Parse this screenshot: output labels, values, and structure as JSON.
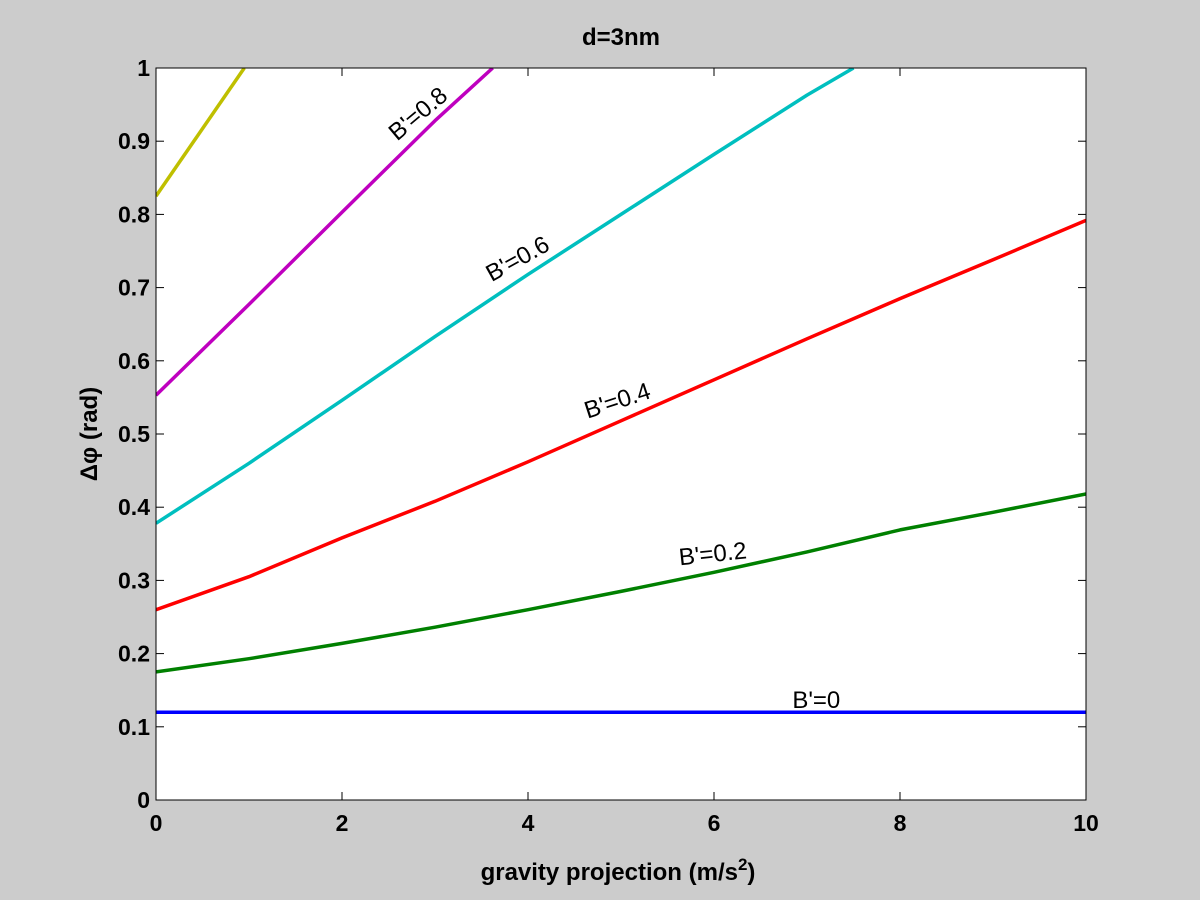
{
  "chart_data": {
    "type": "line",
    "title": "d=3nm",
    "xlabel": "gravity projection (m/s",
    "xlabel_sup": "2",
    "xlabel_end": ")",
    "ylabel": "Δφ (rad)",
    "xlim": [
      0,
      10
    ],
    "ylim": [
      0,
      1
    ],
    "xticks": [
      0,
      2,
      4,
      6,
      8,
      10
    ],
    "yticks": [
      0,
      0.1,
      0.2,
      0.3,
      0.4,
      0.5,
      0.6,
      0.7,
      0.8,
      0.9,
      1
    ],
    "grid": false,
    "series": [
      {
        "label": "B'=0",
        "color": "#0000ff",
        "x": [
          0,
          10
        ],
        "y": [
          0.12,
          0.12
        ],
        "label_at": [
          7.1,
          0.12
        ],
        "label_angle": 0
      },
      {
        "label": "B'=0.2",
        "color": "#008000",
        "x": [
          0,
          1,
          2,
          3,
          4,
          5,
          6,
          7,
          8,
          9,
          10
        ],
        "y": [
          0.175,
          0.193,
          0.214,
          0.236,
          0.26,
          0.285,
          0.311,
          0.339,
          0.369,
          0.393,
          0.418
        ],
        "label_at": [
          6.0,
          0.32
        ],
        "label_angle": -6
      },
      {
        "label": "B'=0.4",
        "color": "#ff0000",
        "x": [
          0,
          1,
          2,
          3,
          4,
          5,
          6,
          7,
          8,
          9,
          10
        ],
        "y": [
          0.26,
          0.305,
          0.358,
          0.408,
          0.462,
          0.518,
          0.574,
          0.63,
          0.685,
          0.738,
          0.792
        ],
        "label_at": [
          5.0,
          0.53
        ],
        "label_angle": -18
      },
      {
        "label": "B'=0.6",
        "color": "#00bfbf",
        "x": [
          0,
          1,
          2,
          3,
          4,
          5,
          6,
          7,
          7.5
        ],
        "y": [
          0.378,
          0.46,
          0.546,
          0.633,
          0.718,
          0.8,
          0.882,
          0.963,
          1.0
        ],
        "label_at": [
          3.95,
          0.725
        ],
        "label_angle": -29
      },
      {
        "label": "B'=0.8",
        "color": "#bf00bf",
        "x": [
          0,
          1,
          2,
          3,
          3.62
        ],
        "y": [
          0.553,
          0.677,
          0.803,
          0.928,
          1.0
        ],
        "label_at": [
          2.9,
          0.925
        ],
        "label_angle": -40
      },
      {
        "label": "",
        "color": "#bfbf00",
        "x": [
          0,
          0.95
        ],
        "y": [
          0.825,
          1.0
        ]
      }
    ]
  }
}
